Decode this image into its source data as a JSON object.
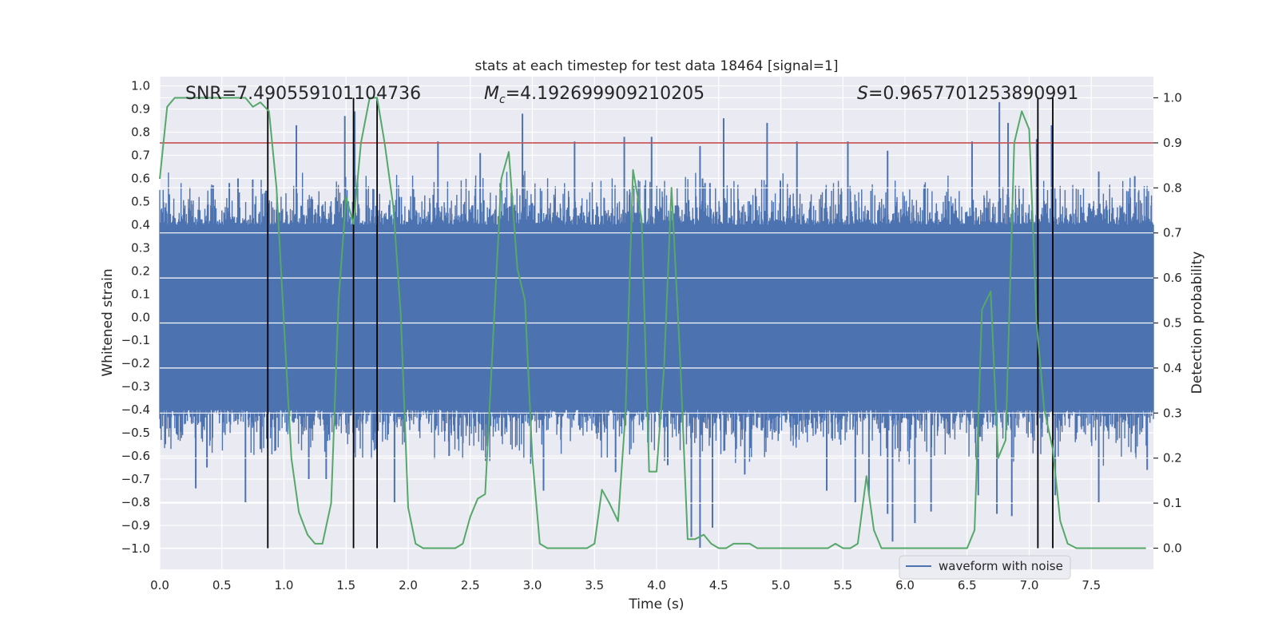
{
  "chart_data": {
    "type": "line",
    "title": "stats at each timestep for test data 18464 [signal=1]",
    "xlabel": "Time (s)",
    "ylabel": "Whitened strain",
    "y2label": "Detection probability",
    "xlim": [
      0.0,
      8.0
    ],
    "ylim": [
      -1.09,
      1.04
    ],
    "y2lim": [
      -0.047,
      1.047
    ],
    "xticks": [
      "0.0",
      "0.5",
      "1.0",
      "1.5",
      "2.0",
      "2.5",
      "3.0",
      "3.5",
      "4.0",
      "4.5",
      "5.0",
      "5.5",
      "6.0",
      "6.5",
      "7.0",
      "7.5"
    ],
    "yticks": [
      "1.0",
      "0.9",
      "0.8",
      "0.7",
      "0.6",
      "0.5",
      "0.4",
      "0.3",
      "0.2",
      "0.1",
      "0.0",
      "-0.1",
      "-0.2",
      "-0.3",
      "-0.4",
      "-0.5",
      "-0.6",
      "-0.7",
      "-0.8",
      "-0.9",
      "-1.0"
    ],
    "y2ticks": [
      "0.0",
      "0.1",
      "0.2",
      "0.3",
      "0.4",
      "0.5",
      "0.6",
      "0.7",
      "0.8",
      "0.9",
      "1.0"
    ],
    "grid": true,
    "annotations": {
      "snr": "SNR=7.490559101104736",
      "mc_symbol": "M",
      "mc_sub": "c",
      "mc_value": "=4.192699909210205",
      "s_symbol": "S",
      "s_value": "=0.9657701253890991"
    },
    "threshold": {
      "value": 0.9,
      "axis": "y2",
      "color": "#c44e52"
    },
    "vlines": {
      "x": [
        0.87,
        1.56,
        1.75,
        7.07,
        7.19
      ],
      "color": "#000000"
    },
    "legend": {
      "entries": [
        "waveform with noise"
      ],
      "placement": "lower-right"
    },
    "series": [
      {
        "name": "waveform with noise",
        "axis": "y",
        "color": "#4c72b0",
        "band_min": -0.4,
        "band_max": 0.4,
        "n_samples": 2048,
        "peaks_up": [
          [
            0.43,
            0.57
          ],
          [
            0.56,
            0.58
          ],
          [
            0.63,
            0.6
          ],
          [
            1.1,
            0.83
          ],
          [
            1.49,
            0.87
          ],
          [
            1.57,
            0.89
          ],
          [
            1.93,
            0.52
          ],
          [
            2.24,
            0.76
          ],
          [
            2.58,
            0.71
          ],
          [
            2.92,
            0.88
          ],
          [
            3.34,
            0.76
          ],
          [
            3.74,
            0.78
          ],
          [
            3.96,
            0.78
          ],
          [
            4.37,
            0.6
          ],
          [
            4.35,
            0.74
          ],
          [
            4.39,
            0.58
          ],
          [
            4.43,
            0.58
          ],
          [
            4.54,
            0.86
          ],
          [
            4.89,
            0.84
          ],
          [
            5.13,
            0.76
          ],
          [
            5.54,
            0.76
          ],
          [
            5.86,
            0.72
          ],
          [
            6.54,
            0.76
          ],
          [
            6.76,
            0.93
          ],
          [
            6.83,
            0.84
          ],
          [
            7.06,
            0.77
          ],
          [
            7.18,
            0.83
          ],
          [
            7.56,
            0.63
          ],
          [
            7.85,
            0.61
          ]
        ],
        "peaks_down": [
          [
            0.29,
            -0.74
          ],
          [
            0.38,
            -0.65
          ],
          [
            0.69,
            -0.8
          ],
          [
            0.81,
            -0.57
          ],
          [
            1.2,
            -0.7
          ],
          [
            1.34,
            -0.7
          ],
          [
            1.89,
            -0.8
          ],
          [
            2.33,
            -0.6
          ],
          [
            3.09,
            -0.75
          ],
          [
            3.67,
            -0.67
          ],
          [
            4.09,
            -0.64
          ],
          [
            4.28,
            -0.95
          ],
          [
            4.35,
            -1.0
          ],
          [
            4.45,
            -0.91
          ],
          [
            4.71,
            -0.68
          ],
          [
            5.37,
            -0.75
          ],
          [
            5.6,
            -0.8
          ],
          [
            5.71,
            -0.77
          ],
          [
            5.86,
            -0.85
          ],
          [
            5.9,
            -0.97
          ],
          [
            6.08,
            -0.89
          ],
          [
            6.21,
            -0.84
          ],
          [
            6.59,
            -0.77
          ],
          [
            6.74,
            -0.85
          ],
          [
            6.86,
            -0.86
          ],
          [
            7.21,
            -0.77
          ],
          [
            7.56,
            -0.8
          ],
          [
            7.95,
            -0.66
          ]
        ]
      },
      {
        "name": "",
        "axis": "y2",
        "color": "#55a868",
        "x": [
          0.0,
          0.06,
          0.12,
          0.19,
          0.25,
          0.31,
          0.38,
          0.44,
          0.5,
          0.56,
          0.62,
          0.69,
          0.75,
          0.81,
          0.88,
          0.94,
          1.0,
          1.06,
          1.12,
          1.19,
          1.25,
          1.31,
          1.38,
          1.44,
          1.5,
          1.56,
          1.62,
          1.69,
          1.75,
          1.81,
          1.88,
          1.94,
          2.0,
          2.06,
          2.12,
          2.19,
          2.25,
          2.31,
          2.38,
          2.44,
          2.5,
          2.56,
          2.62,
          2.69,
          2.75,
          2.81,
          2.88,
          2.94,
          3.0,
          3.06,
          3.12,
          3.19,
          3.25,
          3.31,
          3.38,
          3.44,
          3.5,
          3.56,
          3.62,
          3.69,
          3.75,
          3.81,
          3.88,
          3.94,
          4.0,
          4.06,
          4.12,
          4.19,
          4.25,
          4.31,
          4.38,
          4.44,
          4.5,
          4.56,
          4.62,
          4.69,
          4.75,
          4.81,
          4.88,
          4.94,
          5.0,
          5.06,
          5.12,
          5.19,
          5.25,
          5.31,
          5.38,
          5.44,
          5.5,
          5.56,
          5.62,
          5.69,
          5.75,
          5.81,
          5.88,
          5.94,
          6.0,
          6.06,
          6.12,
          6.19,
          6.25,
          6.31,
          6.38,
          6.44,
          6.5,
          6.56,
          6.62,
          6.69,
          6.75,
          6.81,
          6.88,
          6.94,
          7.0,
          7.06,
          7.12,
          7.19,
          7.25,
          7.31,
          7.38,
          7.44,
          7.5,
          7.56,
          7.62,
          7.69,
          7.75,
          7.81,
          7.88,
          7.94
        ],
        "values": [
          0.82,
          0.98,
          1.0,
          1.0,
          1.0,
          1.0,
          1.0,
          1.0,
          1.0,
          1.0,
          1.0,
          1.0,
          0.98,
          0.99,
          0.97,
          0.8,
          0.5,
          0.2,
          0.08,
          0.03,
          0.01,
          0.01,
          0.1,
          0.55,
          0.78,
          0.72,
          0.9,
          1.0,
          1.0,
          0.9,
          0.76,
          0.52,
          0.09,
          0.01,
          0.0,
          0.0,
          0.0,
          0.0,
          0.0,
          0.01,
          0.07,
          0.11,
          0.12,
          0.5,
          0.82,
          0.88,
          0.62,
          0.55,
          0.2,
          0.01,
          0.0,
          0.0,
          0.0,
          0.0,
          0.0,
          0.0,
          0.01,
          0.13,
          0.1,
          0.06,
          0.3,
          0.84,
          0.73,
          0.17,
          0.17,
          0.4,
          0.8,
          0.42,
          0.02,
          0.02,
          0.03,
          0.01,
          0.0,
          0.0,
          0.01,
          0.01,
          0.01,
          0.0,
          0.0,
          0.0,
          0.0,
          0.0,
          0.0,
          0.0,
          0.0,
          0.0,
          0.0,
          0.01,
          0.0,
          0.0,
          0.01,
          0.16,
          0.04,
          0.0,
          0.0,
          0.0,
          0.0,
          0.0,
          0.0,
          0.0,
          0.0,
          0.0,
          0.0,
          0.0,
          0.0,
          0.04,
          0.53,
          0.57,
          0.2,
          0.24,
          0.9,
          0.97,
          0.93,
          0.5,
          0.31,
          0.22,
          0.06,
          0.01,
          0.0,
          0.0,
          0.0,
          0.0,
          0.0,
          0.0,
          0.0,
          0.0,
          0.0,
          0.0
        ]
      }
    ]
  }
}
